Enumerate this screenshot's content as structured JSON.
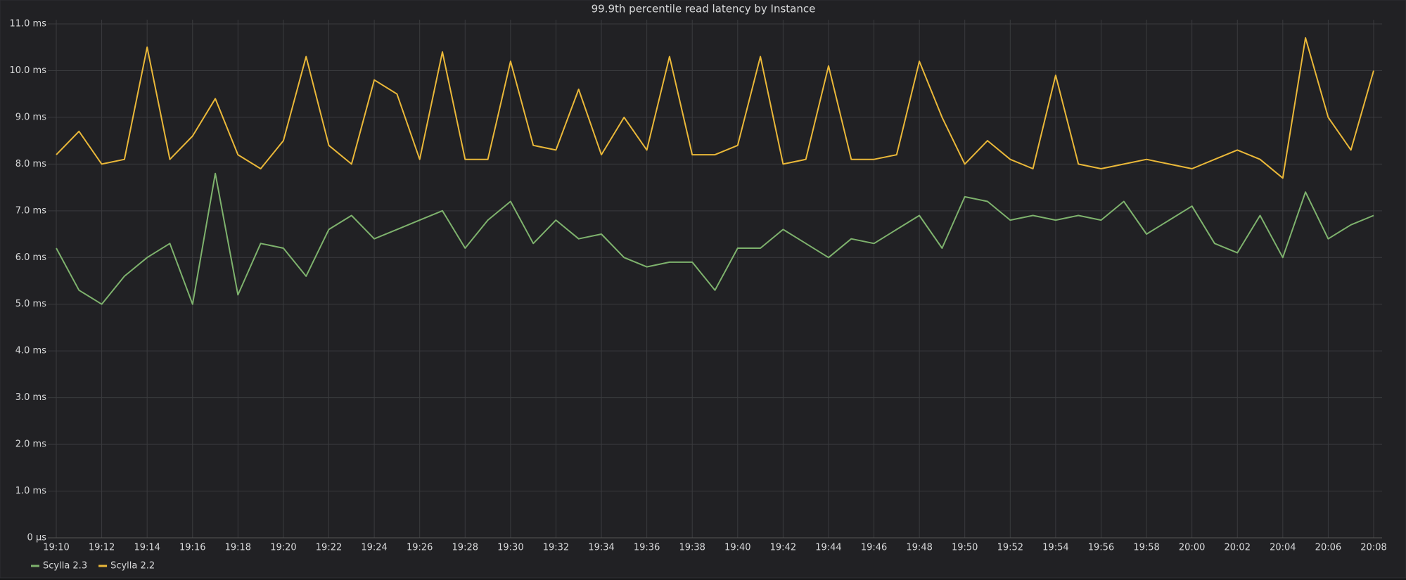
{
  "chart_data": {
    "type": "line",
    "title": "99.9th percentile read latency by Instance",
    "x": [
      "19:10",
      "19:11",
      "19:12",
      "19:13",
      "19:14",
      "19:15",
      "19:16",
      "19:17",
      "19:18",
      "19:19",
      "19:20",
      "19:21",
      "19:22",
      "19:23",
      "19:24",
      "19:25",
      "19:26",
      "19:27",
      "19:28",
      "19:29",
      "19:30",
      "19:31",
      "19:32",
      "19:33",
      "19:34",
      "19:35",
      "19:36",
      "19:37",
      "19:38",
      "19:39",
      "19:40",
      "19:41",
      "19:42",
      "19:43",
      "19:44",
      "19:45",
      "19:46",
      "19:47",
      "19:48",
      "19:49",
      "19:50",
      "19:51",
      "19:52",
      "19:53",
      "19:54",
      "19:55",
      "19:56",
      "19:57",
      "19:58",
      "19:59",
      "20:00",
      "20:01",
      "20:02",
      "20:03",
      "20:04",
      "20:05",
      "20:06",
      "20:07",
      "20:08"
    ],
    "series": [
      {
        "name": "Scylla 2.3",
        "color": "#7eb26d",
        "values": [
          6.2,
          5.3,
          5.0,
          5.6,
          6.0,
          6.3,
          5.0,
          7.8,
          5.2,
          6.3,
          6.2,
          5.6,
          6.6,
          6.9,
          6.4,
          6.6,
          6.8,
          7.0,
          6.2,
          6.8,
          7.2,
          6.3,
          6.8,
          6.4,
          6.5,
          6.0,
          5.8,
          5.9,
          5.9,
          5.3,
          6.2,
          6.2,
          6.6,
          6.3,
          6.0,
          6.4,
          6.3,
          6.6,
          6.9,
          6.2,
          7.3,
          7.2,
          6.8,
          6.9,
          6.8,
          6.9,
          6.8,
          7.2,
          6.5,
          6.8,
          7.1,
          6.3,
          6.1,
          6.9,
          6.0,
          7.4,
          6.4,
          6.7,
          6.9
        ]
      },
      {
        "name": "Scylla 2.2",
        "color": "#eab839",
        "values": [
          8.2,
          8.7,
          8.0,
          8.1,
          10.5,
          8.1,
          8.6,
          9.4,
          8.2,
          7.9,
          8.5,
          10.3,
          8.4,
          8.0,
          9.8,
          9.5,
          8.1,
          10.4,
          8.1,
          8.1,
          10.2,
          8.4,
          8.3,
          9.6,
          8.2,
          9.0,
          8.3,
          10.3,
          8.2,
          8.2,
          8.4,
          10.3,
          8.0,
          8.1,
          10.1,
          8.1,
          8.1,
          8.2,
          10.2,
          9.0,
          8.0,
          8.5,
          8.1,
          7.9,
          9.9,
          8.0,
          7.9,
          8.0,
          8.1,
          8.0,
          7.9,
          8.1,
          8.3,
          8.1,
          7.7,
          10.7,
          9.0,
          8.3,
          10.0
        ]
      }
    ],
    "xlim": [
      "19:10",
      "20:08"
    ],
    "xticks": [
      "19:10",
      "19:12",
      "19:14",
      "19:16",
      "19:18",
      "19:20",
      "19:22",
      "19:24",
      "19:26",
      "19:28",
      "19:30",
      "19:32",
      "19:34",
      "19:36",
      "19:38",
      "19:40",
      "19:42",
      "19:44",
      "19:46",
      "19:48",
      "19:50",
      "19:52",
      "19:54",
      "19:56",
      "19:58",
      "20:00",
      "20:02",
      "20:04",
      "20:06",
      "20:08"
    ],
    "ylim": [
      0,
      11
    ],
    "yticks": [
      {
        "value": 0,
        "label": "0 µs"
      },
      {
        "value": 1,
        "label": "1.0 ms"
      },
      {
        "value": 2,
        "label": "2.0 ms"
      },
      {
        "value": 3,
        "label": "3.0 ms"
      },
      {
        "value": 4,
        "label": "4.0 ms"
      },
      {
        "value": 5,
        "label": "5.0 ms"
      },
      {
        "value": 6,
        "label": "6.0 ms"
      },
      {
        "value": 7,
        "label": "7.0 ms"
      },
      {
        "value": 8,
        "label": "8.0 ms"
      },
      {
        "value": 9,
        "label": "9.0 ms"
      },
      {
        "value": 10,
        "label": "10.0 ms"
      },
      {
        "value": 11,
        "label": "11.0 ms"
      }
    ],
    "grid": true,
    "legend": "bottom-left"
  }
}
